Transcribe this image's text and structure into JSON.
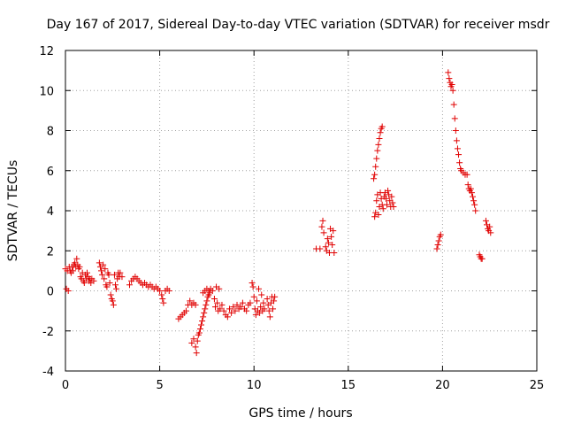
{
  "chart_data": {
    "type": "scatter",
    "title": "Day 167 of 2017, Sidereal Day-to-day VTEC variation (SDTVAR) for receiver msdr",
    "xlabel": "GPS time / hours",
    "ylabel": "SDTVAR / TECUs",
    "xlim": [
      0,
      25
    ],
    "ylim": [
      -4,
      12
    ],
    "xticks": [
      0,
      5,
      10,
      15,
      20,
      25
    ],
    "yticks": [
      -4,
      -2,
      0,
      2,
      4,
      6,
      8,
      10,
      12
    ],
    "grid": true,
    "marker": "+",
    "color": "#e00000",
    "series": [
      {
        "name": "SDTVAR",
        "points": [
          [
            0.0,
            1.1
          ],
          [
            0.05,
            0.1
          ],
          [
            0.1,
            1.0
          ],
          [
            0.15,
            0.0
          ],
          [
            0.2,
            1.2
          ],
          [
            0.25,
            1.0
          ],
          [
            0.3,
            0.9
          ],
          [
            0.35,
            1.2
          ],
          [
            0.4,
            1.0
          ],
          [
            0.45,
            1.3
          ],
          [
            0.5,
            1.4
          ],
          [
            0.55,
            1.2
          ],
          [
            0.6,
            1.6
          ],
          [
            0.65,
            1.3
          ],
          [
            0.7,
            1.1
          ],
          [
            0.75,
            1.2
          ],
          [
            0.8,
            0.7
          ],
          [
            0.85,
            0.6
          ],
          [
            0.9,
            0.9
          ],
          [
            0.95,
            0.5
          ],
          [
            1.0,
            0.4
          ],
          [
            1.05,
            0.8
          ],
          [
            1.1,
            0.6
          ],
          [
            1.15,
            0.9
          ],
          [
            1.2,
            0.7
          ],
          [
            1.25,
            0.5
          ],
          [
            1.3,
            0.6
          ],
          [
            1.35,
            0.4
          ],
          [
            1.4,
            0.6
          ],
          [
            1.5,
            0.5
          ],
          [
            1.8,
            1.4
          ],
          [
            1.85,
            1.2
          ],
          [
            1.9,
            1.0
          ],
          [
            1.95,
            0.8
          ],
          [
            2.0,
            1.3
          ],
          [
            2.05,
            0.6
          ],
          [
            2.1,
            1.1
          ],
          [
            2.15,
            0.3
          ],
          [
            2.2,
            0.2
          ],
          [
            2.25,
            0.9
          ],
          [
            2.3,
            0.8
          ],
          [
            2.35,
            0.4
          ],
          [
            2.4,
            -0.2
          ],
          [
            2.45,
            -0.4
          ],
          [
            2.5,
            -0.5
          ],
          [
            2.55,
            -0.7
          ],
          [
            2.6,
            0.8
          ],
          [
            2.65,
            0.3
          ],
          [
            2.7,
            0.1
          ],
          [
            2.75,
            0.6
          ],
          [
            2.8,
            0.9
          ],
          [
            2.85,
            0.7
          ],
          [
            2.9,
            0.9
          ],
          [
            3.0,
            0.7
          ],
          [
            3.4,
            0.3
          ],
          [
            3.5,
            0.5
          ],
          [
            3.6,
            0.6
          ],
          [
            3.7,
            0.7
          ],
          [
            3.8,
            0.6
          ],
          [
            3.9,
            0.5
          ],
          [
            4.0,
            0.4
          ],
          [
            4.1,
            0.3
          ],
          [
            4.2,
            0.4
          ],
          [
            4.3,
            0.3
          ],
          [
            4.4,
            0.2
          ],
          [
            4.5,
            0.3
          ],
          [
            4.6,
            0.2
          ],
          [
            4.7,
            0.1
          ],
          [
            4.8,
            0.2
          ],
          [
            4.9,
            0.1
          ],
          [
            5.0,
            0.0
          ],
          [
            5.1,
            -0.2
          ],
          [
            5.15,
            -0.4
          ],
          [
            5.2,
            -0.6
          ],
          [
            5.3,
            0.0
          ],
          [
            5.4,
            0.1
          ],
          [
            5.5,
            0.0
          ],
          [
            6.0,
            -1.4
          ],
          [
            6.1,
            -1.3
          ],
          [
            6.2,
            -1.2
          ],
          [
            6.3,
            -1.1
          ],
          [
            6.4,
            -1.0
          ],
          [
            6.5,
            -0.7
          ],
          [
            6.6,
            -0.5
          ],
          [
            6.7,
            -0.7
          ],
          [
            6.8,
            -0.6
          ],
          [
            6.9,
            -0.7
          ],
          [
            6.7,
            -2.6
          ],
          [
            6.8,
            -2.4
          ],
          [
            6.9,
            -2.8
          ],
          [
            6.95,
            -3.1
          ],
          [
            7.0,
            -2.5
          ],
          [
            7.05,
            -2.2
          ],
          [
            7.1,
            -2.1
          ],
          [
            7.15,
            -1.9
          ],
          [
            7.2,
            -1.7
          ],
          [
            7.25,
            -1.5
          ],
          [
            7.3,
            -1.3
          ],
          [
            7.35,
            -1.1
          ],
          [
            7.4,
            -0.9
          ],
          [
            7.45,
            -0.7
          ],
          [
            7.5,
            -0.5
          ],
          [
            7.55,
            -0.3
          ],
          [
            7.6,
            -0.2
          ],
          [
            7.65,
            -0.1
          ],
          [
            7.3,
            -0.1
          ],
          [
            7.4,
            0.0
          ],
          [
            7.5,
            0.1
          ],
          [
            7.6,
            0.0
          ],
          [
            7.7,
            0.1
          ],
          [
            7.8,
            0.0
          ],
          [
            7.9,
            -0.4
          ],
          [
            7.95,
            -0.8
          ],
          [
            8.0,
            0.2
          ],
          [
            8.05,
            -0.6
          ],
          [
            8.1,
            -1.0
          ],
          [
            8.15,
            0.1
          ],
          [
            8.2,
            -0.9
          ],
          [
            8.3,
            -0.7
          ],
          [
            8.4,
            -1.0
          ],
          [
            8.5,
            -1.2
          ],
          [
            8.6,
            -1.3
          ],
          [
            8.7,
            -0.9
          ],
          [
            8.8,
            -1.1
          ],
          [
            8.9,
            -0.8
          ],
          [
            9.0,
            -1.0
          ],
          [
            9.1,
            -0.7
          ],
          [
            9.2,
            -0.9
          ],
          [
            9.3,
            -0.8
          ],
          [
            9.4,
            -0.6
          ],
          [
            9.5,
            -0.9
          ],
          [
            9.6,
            -1.0
          ],
          [
            9.7,
            -0.7
          ],
          [
            9.8,
            -0.6
          ],
          [
            9.9,
            0.4
          ],
          [
            9.95,
            0.2
          ],
          [
            10.0,
            -0.3
          ],
          [
            10.05,
            -0.9
          ],
          [
            10.1,
            -1.2
          ],
          [
            10.15,
            -0.5
          ],
          [
            10.2,
            -1.0
          ],
          [
            10.25,
            0.1
          ],
          [
            10.3,
            -1.1
          ],
          [
            10.35,
            -0.8
          ],
          [
            10.4,
            -0.2
          ],
          [
            10.45,
            -1.0
          ],
          [
            10.5,
            -0.6
          ],
          [
            10.55,
            -0.9
          ],
          [
            10.7,
            -0.4
          ],
          [
            10.75,
            -0.7
          ],
          [
            10.8,
            -1.0
          ],
          [
            10.85,
            -1.3
          ],
          [
            10.9,
            -0.6
          ],
          [
            10.95,
            -0.3
          ],
          [
            11.0,
            -0.9
          ],
          [
            11.05,
            -0.5
          ],
          [
            11.1,
            -0.3
          ],
          [
            13.3,
            2.1
          ],
          [
            13.5,
            2.1
          ],
          [
            13.6,
            3.2
          ],
          [
            13.65,
            3.5
          ],
          [
            13.7,
            2.9
          ],
          [
            13.8,
            2.2
          ],
          [
            13.85,
            2.0
          ],
          [
            13.9,
            2.6
          ],
          [
            13.95,
            2.4
          ],
          [
            14.0,
            1.9
          ],
          [
            14.05,
            3.1
          ],
          [
            14.1,
            2.7
          ],
          [
            14.15,
            2.3
          ],
          [
            14.2,
            3.0
          ],
          [
            14.25,
            1.9
          ],
          [
            16.4,
            3.7
          ],
          [
            16.45,
            3.9
          ],
          [
            16.5,
            4.5
          ],
          [
            16.55,
            4.8
          ],
          [
            16.6,
            3.8
          ],
          [
            16.65,
            4.2
          ],
          [
            16.7,
            4.9
          ],
          [
            16.75,
            4.6
          ],
          [
            16.8,
            4.3
          ],
          [
            16.85,
            4.1
          ],
          [
            16.9,
            4.7
          ],
          [
            16.95,
            4.9
          ],
          [
            17.0,
            4.6
          ],
          [
            17.05,
            4.3
          ],
          [
            17.1,
            5.0
          ],
          [
            17.15,
            4.8
          ],
          [
            17.2,
            4.5
          ],
          [
            17.25,
            4.2
          ],
          [
            17.3,
            4.7
          ],
          [
            17.35,
            4.4
          ],
          [
            17.4,
            4.2
          ],
          [
            16.35,
            5.6
          ],
          [
            16.4,
            5.8
          ],
          [
            16.45,
            6.2
          ],
          [
            16.5,
            6.6
          ],
          [
            16.55,
            7.0
          ],
          [
            16.6,
            7.3
          ],
          [
            16.65,
            7.6
          ],
          [
            16.7,
            7.9
          ],
          [
            16.75,
            8.1
          ],
          [
            16.8,
            8.2
          ],
          [
            19.7,
            2.1
          ],
          [
            19.75,
            2.3
          ],
          [
            19.8,
            2.5
          ],
          [
            19.85,
            2.7
          ],
          [
            19.9,
            2.8
          ],
          [
            20.3,
            10.9
          ],
          [
            20.35,
            10.6
          ],
          [
            20.4,
            10.4
          ],
          [
            20.45,
            10.2
          ],
          [
            20.5,
            10.3
          ],
          [
            20.55,
            10.0
          ],
          [
            20.6,
            9.3
          ],
          [
            20.65,
            8.6
          ],
          [
            20.7,
            8.0
          ],
          [
            20.75,
            7.5
          ],
          [
            20.8,
            7.1
          ],
          [
            20.85,
            6.8
          ],
          [
            20.9,
            6.4
          ],
          [
            20.95,
            6.1
          ],
          [
            21.0,
            6.0
          ],
          [
            21.1,
            5.9
          ],
          [
            21.2,
            5.8
          ],
          [
            21.3,
            5.8
          ],
          [
            21.35,
            5.3
          ],
          [
            21.4,
            5.1
          ],
          [
            21.45,
            5.0
          ],
          [
            21.5,
            5.1
          ],
          [
            21.55,
            4.9
          ],
          [
            21.6,
            4.7
          ],
          [
            21.65,
            4.5
          ],
          [
            21.7,
            4.3
          ],
          [
            21.75,
            4.0
          ],
          [
            21.95,
            1.8
          ],
          [
            22.0,
            1.7
          ],
          [
            22.05,
            1.6
          ],
          [
            22.1,
            1.6
          ],
          [
            22.3,
            3.5
          ],
          [
            22.35,
            3.3
          ],
          [
            22.4,
            3.1
          ],
          [
            22.45,
            3.0
          ],
          [
            22.5,
            3.2
          ],
          [
            22.55,
            2.9
          ]
        ]
      }
    ]
  }
}
